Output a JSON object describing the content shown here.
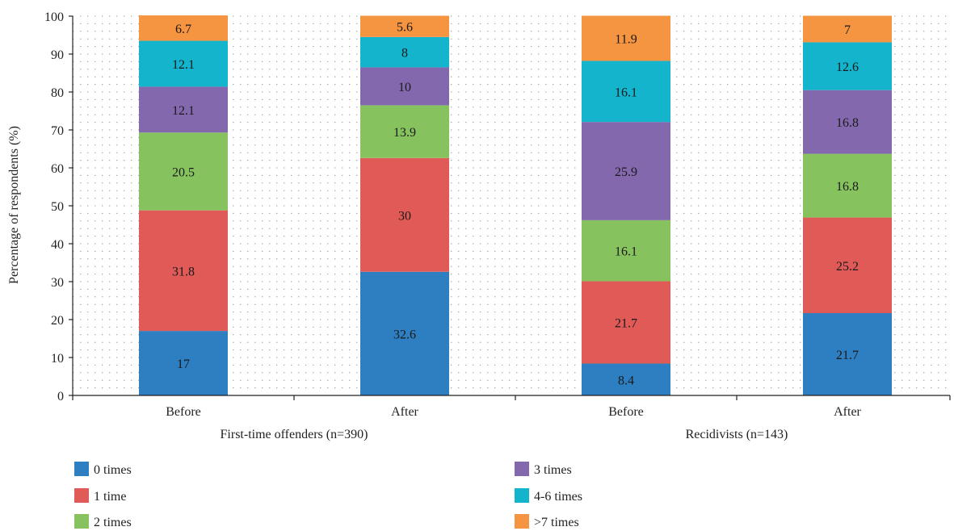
{
  "chart_data": {
    "type": "bar",
    "stacked": true,
    "ylabel": "Percentage of respondents (%)",
    "ylim": [
      0,
      100
    ],
    "yticks": [
      0,
      10,
      20,
      30,
      40,
      50,
      60,
      70,
      80,
      90,
      100
    ],
    "grid": true,
    "categories": [
      "Before",
      "After",
      "Before",
      "After"
    ],
    "groups": [
      {
        "label": "First-time offenders (n=390)",
        "categories": [
          0,
          1
        ]
      },
      {
        "label": "Recidivists (n=143)",
        "categories": [
          2,
          3
        ]
      }
    ],
    "series": [
      {
        "name": "0 times",
        "color": "#2e7fc1",
        "values": [
          17,
          32.6,
          8.4,
          21.7
        ]
      },
      {
        "name": "1 time",
        "color": "#e05a57",
        "values": [
          31.8,
          30,
          21.7,
          25.2
        ]
      },
      {
        "name": "2 times",
        "color": "#86c35e",
        "values": [
          20.5,
          13.9,
          16.1,
          16.8
        ]
      },
      {
        "name": "3 times",
        "color": "#8468ae",
        "values": [
          12.1,
          10,
          25.9,
          16.8
        ]
      },
      {
        "name": "4-6 times",
        "color": "#14b4cc",
        "values": [
          12.1,
          8,
          16.1,
          12.6
        ]
      },
      {
        "name": ">7 times",
        "color": "#f59441",
        "values": [
          6.7,
          5.6,
          11.9,
          7
        ]
      }
    ],
    "legend_position": "bottom"
  }
}
